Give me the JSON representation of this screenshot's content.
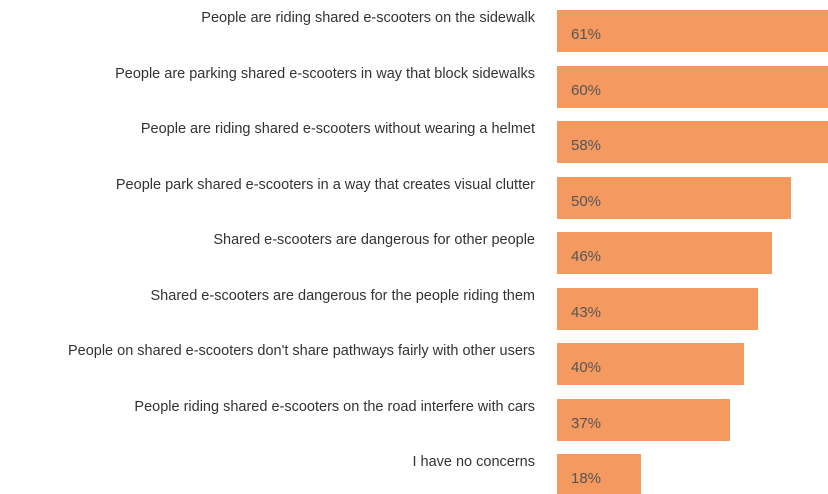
{
  "chart_data": {
    "type": "bar",
    "orientation": "horizontal",
    "color": "#f4995f",
    "categories": [
      "People are riding shared e-scooters on the sidewalk",
      "People are parking shared e-scooters in way that block sidewalks",
      "People are riding shared e-scooters without wearing a helmet",
      "People park shared e-scooters in a way that creates visual clutter",
      "Shared e-scooters are dangerous for other people",
      "Shared e-scooters are dangerous for the people riding them",
      "People on shared e-scooters don't share pathways fairly with other users",
      "People riding shared e-scooters on the road interfere with cars",
      "I have no concerns"
    ],
    "values": [
      61,
      60,
      58,
      50,
      46,
      43,
      40,
      37,
      18
    ],
    "value_labels": [
      "61%",
      "60%",
      "58%",
      "50%",
      "46%",
      "43%",
      "40%",
      "37%",
      "18%"
    ]
  }
}
